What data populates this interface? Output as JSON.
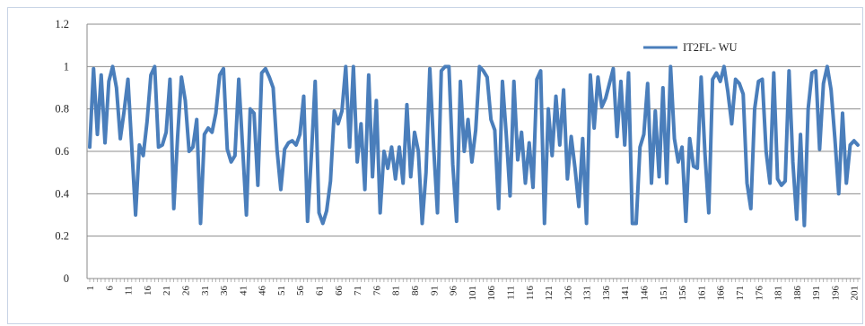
{
  "chart_data": {
    "type": "line",
    "title": "",
    "xlabel": "",
    "ylabel": "",
    "ylim": [
      0,
      1.2
    ],
    "y_ticks": [
      "0",
      "0.2",
      "0.4",
      "0.6",
      "0.8",
      "1",
      "1.2"
    ],
    "grid": "horizontal",
    "legend_position": "top-right",
    "x_label_step": 5,
    "series": [
      {
        "name": "IT2FL- WU",
        "color": "#4a7ebb",
        "values": [
          0.62,
          0.99,
          0.68,
          0.96,
          0.64,
          0.93,
          1.0,
          0.9,
          0.66,
          0.79,
          0.94,
          0.62,
          0.3,
          0.63,
          0.58,
          0.74,
          0.96,
          1.0,
          0.62,
          0.63,
          0.69,
          0.94,
          0.33,
          0.67,
          0.95,
          0.84,
          0.6,
          0.62,
          0.75,
          0.26,
          0.68,
          0.71,
          0.69,
          0.78,
          0.96,
          0.99,
          0.61,
          0.55,
          0.58,
          0.94,
          0.62,
          0.3,
          0.8,
          0.78,
          0.44,
          0.97,
          0.99,
          0.95,
          0.9,
          0.61,
          0.42,
          0.61,
          0.64,
          0.65,
          0.63,
          0.68,
          0.86,
          0.27,
          0.58,
          0.93,
          0.31,
          0.26,
          0.32,
          0.46,
          0.79,
          0.73,
          0.79,
          1.0,
          0.62,
          1.0,
          0.55,
          0.73,
          0.42,
          0.96,
          0.48,
          0.84,
          0.31,
          0.6,
          0.52,
          0.62,
          0.47,
          0.62,
          0.45,
          0.82,
          0.48,
          0.69,
          0.6,
          0.26,
          0.5,
          0.99,
          0.62,
          0.31,
          0.98,
          1.0,
          1.0,
          0.54,
          0.27,
          0.93,
          0.6,
          0.75,
          0.55,
          0.7,
          1.0,
          0.98,
          0.95,
          0.75,
          0.7,
          0.33,
          0.93,
          0.68,
          0.39,
          0.93,
          0.56,
          0.69,
          0.45,
          0.64,
          0.43,
          0.94,
          0.98,
          0.26,
          0.8,
          0.58,
          0.86,
          0.63,
          0.89,
          0.47,
          0.67,
          0.52,
          0.34,
          0.66,
          0.26,
          0.96,
          0.71,
          0.95,
          0.81,
          0.85,
          0.92,
          0.99,
          0.67,
          0.93,
          0.63,
          0.97,
          0.26,
          0.26,
          0.62,
          0.68,
          0.92,
          0.45,
          0.79,
          0.48,
          0.9,
          0.45,
          1.0,
          0.66,
          0.55,
          0.62,
          0.27,
          0.66,
          0.53,
          0.52,
          0.95,
          0.59,
          0.31,
          0.94,
          0.97,
          0.93,
          1.0,
          0.88,
          0.73,
          0.94,
          0.92,
          0.87,
          0.45,
          0.33,
          0.8,
          0.93,
          0.94,
          0.6,
          0.45,
          0.97,
          0.47,
          0.44,
          0.46,
          0.98,
          0.55,
          0.28,
          0.68,
          0.25,
          0.8,
          0.97,
          0.98,
          0.61,
          0.92,
          1.0,
          0.89,
          0.66,
          0.4,
          0.78,
          0.45,
          0.63,
          0.65,
          0.63
        ]
      }
    ]
  }
}
